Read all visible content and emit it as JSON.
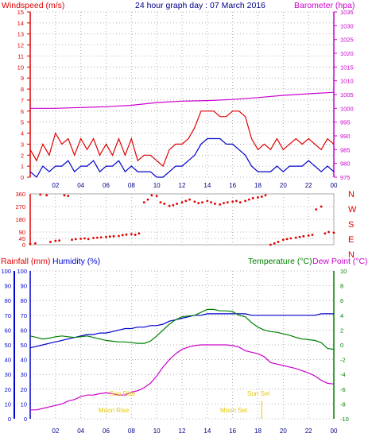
{
  "colors": {
    "wind_axis": "#e00000",
    "baro_axis": "#cc00cc",
    "rain_axis": "#e00000",
    "hum_axis": "#0000cc",
    "temp_axis": "#008000",
    "dew_axis": "#cc00cc",
    "sun": "#e8c800",
    "moon": "#e8c800",
    "grid": "#9a9a9a",
    "dir_axis": "#e00000"
  },
  "header": {
    "windspeed_label": "Windspeed (m/s)",
    "title": "24 hour graph day : 07 March 2016",
    "barometer_label": "Barometer (hpa)"
  },
  "x_ticks": [
    "02",
    "04",
    "06",
    "08",
    "10",
    "12",
    "14",
    "16",
    "18",
    "20",
    "22",
    "00"
  ],
  "bottom_header": {
    "rain": "Rainfall (mm)",
    "humidity": "Humidity (%)",
    "temperature": "Temperature (°C)",
    "dewpoint": "Dew Point (°C)"
  },
  "annotations": {
    "sunrise": "Sun Rise",
    "moonrise": "Moon Rise",
    "sunset": "Sun Set",
    "moonset": "Moon Set"
  },
  "chart_data": [
    {
      "type": "line",
      "title": "24 hour graph day : 07 March 2016",
      "x_unit": "hour",
      "xlim": [
        0,
        24
      ],
      "left_axis": {
        "label": "Windspeed (m/s)",
        "ylim": [
          0,
          15
        ],
        "ticks": [
          0,
          1,
          2,
          3,
          4,
          5,
          6,
          7,
          8,
          9,
          10,
          11,
          12,
          13,
          14,
          15
        ]
      },
      "right_axis": {
        "label": "Barometer (hpa)",
        "ylim": [
          975,
          1035
        ],
        "ticks": [
          975,
          980,
          985,
          990,
          995,
          1000,
          1005,
          1010,
          1015,
          1020,
          1025,
          1030,
          1035
        ]
      },
      "series": [
        {
          "name": "Windspeed (m/s)",
          "axis": "left",
          "color": "#e00000",
          "x": [
            0,
            0.5,
            1,
            1.5,
            2,
            2.5,
            3,
            3.5,
            4,
            4.5,
            5,
            5.5,
            6,
            6.5,
            7,
            7.5,
            8,
            8.5,
            9,
            9.5,
            10,
            10.5,
            11,
            11.5,
            12,
            12.5,
            13,
            13.5,
            14,
            14.5,
            15,
            15.5,
            16,
            16.5,
            17,
            17.5,
            18,
            18.5,
            19,
            19.5,
            20,
            20.5,
            21,
            21.5,
            22,
            22.5,
            23,
            23.5,
            24
          ],
          "y": [
            2.5,
            1.5,
            3,
            2,
            4,
            3,
            3.5,
            2,
            3.5,
            2.5,
            3.5,
            2,
            3,
            2,
            3.5,
            2,
            3.5,
            1.5,
            2,
            2,
            1.5,
            1,
            2.5,
            3,
            3,
            3.5,
            4.5,
            6,
            6,
            6,
            5.5,
            5.5,
            6,
            6,
            5.5,
            3.5,
            2.5,
            3,
            2.5,
            3.5,
            2.5,
            3,
            3.5,
            3,
            3.5,
            3,
            2.5,
            3.5,
            3
          ]
        },
        {
          "name": "Gust",
          "axis": "left",
          "color": "#0000cc",
          "x": [
            0,
            0.5,
            1,
            1.5,
            2,
            2.5,
            3,
            3.5,
            4,
            4.5,
            5,
            5.5,
            6,
            6.5,
            7,
            7.5,
            8,
            8.5,
            9,
            9.5,
            10,
            10.5,
            11,
            11.5,
            12,
            12.5,
            13,
            13.5,
            14,
            14.5,
            15,
            15.5,
            16,
            16.5,
            17,
            17.5,
            18,
            18.5,
            19,
            19.5,
            20,
            20.5,
            21,
            21.5,
            22,
            22.5,
            23,
            23.5,
            24
          ],
          "y": [
            0.5,
            0,
            1,
            0.5,
            1,
            1,
            1.5,
            0.5,
            1,
            1,
            1.5,
            0.5,
            1,
            1,
            1.5,
            0.5,
            1,
            0.5,
            0.5,
            0.5,
            0,
            0,
            0.5,
            1,
            1,
            1.5,
            2,
            3,
            3.5,
            3.5,
            3.5,
            3,
            3,
            2.5,
            2,
            1,
            0.5,
            0.5,
            0.5,
            1,
            0.5,
            1,
            1,
            1,
            1.5,
            1,
            0.5,
            1,
            0.5
          ]
        },
        {
          "name": "Barometer (hpa)",
          "axis": "right",
          "color": "#cc00cc",
          "x": [
            0,
            2,
            4,
            6,
            8,
            10,
            12,
            14,
            16,
            18,
            20,
            22,
            24
          ],
          "y": [
            1000,
            1000,
            1000.3,
            1000.6,
            1001.1,
            1002.1,
            1002.6,
            1002.8,
            1003.2,
            1003.9,
            1004.7,
            1005.3,
            1005.8
          ]
        }
      ]
    },
    {
      "type": "scatter",
      "x_unit": "hour",
      "xlim": [
        0,
        24
      ],
      "ylim": [
        0,
        360
      ],
      "y_ticks": [
        0,
        45,
        90,
        180,
        270,
        360
      ],
      "compass_labels": [
        "N",
        "W",
        "S",
        "E",
        "N"
      ],
      "series": [
        {
          "name": "Wind Direction",
          "color": "#e00000",
          "x": [
            0,
            0.4,
            0.8,
            1.3,
            1.6,
            2,
            2.3,
            2.7,
            3,
            3.3,
            3.6,
            4,
            4.3,
            4.6,
            5,
            5.3,
            5.6,
            6,
            6.3,
            6.6,
            7,
            7.3,
            7.6,
            8,
            8.3,
            8.6,
            9,
            9.3,
            9.6,
            10,
            10.3,
            10.6,
            11,
            11.3,
            11.6,
            12,
            12.3,
            12.6,
            13,
            13.3,
            13.6,
            14,
            14.3,
            14.6,
            15,
            15.3,
            15.6,
            16,
            16.3,
            16.6,
            17,
            17.3,
            17.6,
            18,
            18.3,
            18.6,
            19,
            19.3,
            19.6,
            20,
            20.3,
            20.6,
            21,
            21.3,
            21.6,
            22,
            22.3,
            22.6,
            23,
            23.3,
            23.6,
            24
          ],
          "y": [
            5,
            10,
            355,
            350,
            20,
            28,
            30,
            350,
            345,
            35,
            40,
            42,
            45,
            40,
            48,
            50,
            52,
            55,
            58,
            60,
            62,
            68,
            72,
            75,
            70,
            80,
            300,
            320,
            350,
            345,
            300,
            290,
            275,
            280,
            290,
            300,
            310,
            320,
            305,
            295,
            300,
            310,
            300,
            290,
            285,
            295,
            300,
            305,
            310,
            300,
            310,
            320,
            330,
            335,
            340,
            350,
            0,
            10,
            20,
            35,
            40,
            45,
            50,
            55,
            60,
            65,
            70,
            250,
            270,
            80,
            90,
            85
          ]
        }
      ]
    },
    {
      "type": "line",
      "x_unit": "hour",
      "xlim": [
        0,
        24
      ],
      "left_axes": [
        {
          "label": "Rainfall (mm)",
          "ylim": [
            0,
            100
          ],
          "ticks": [
            0,
            10,
            20,
            30,
            40,
            50,
            60,
            70,
            80,
            90,
            100
          ]
        },
        {
          "label": "Humidity (%)",
          "ylim": [
            0,
            100
          ],
          "ticks": [
            0,
            10,
            20,
            30,
            40,
            50,
            60,
            70,
            80,
            90,
            100
          ]
        }
      ],
      "right_axis": {
        "label": "Temperature (°C)",
        "ylim": [
          -10,
          10
        ],
        "ticks": [
          -10,
          -8,
          -6,
          -4,
          -2,
          0,
          2,
          4,
          6,
          8,
          10
        ]
      },
      "series": [
        {
          "name": "Humidity (%)",
          "axis": "left",
          "color": "#0000cc",
          "x": [
            0,
            0.5,
            1,
            1.5,
            2,
            2.5,
            3,
            3.5,
            4,
            4.5,
            5,
            5.5,
            6,
            6.5,
            7,
            7.5,
            8,
            8.5,
            9,
            9.5,
            10,
            10.5,
            11,
            11.5,
            12,
            12.5,
            13,
            13.5,
            14,
            14.5,
            15,
            15.5,
            16,
            16.5,
            17,
            17.5,
            18,
            18.5,
            19,
            19.5,
            20,
            20.5,
            21,
            21.5,
            22,
            22.5,
            23,
            23.5,
            24
          ],
          "y": [
            48,
            49,
            50,
            51,
            52,
            53,
            54,
            55,
            56,
            57,
            57,
            58,
            58,
            59,
            60,
            61,
            61,
            62,
            62,
            63,
            63,
            64,
            66,
            67,
            68,
            69,
            70,
            70,
            71,
            71,
            71,
            71,
            71,
            71,
            71,
            70,
            70,
            70,
            70,
            70,
            70,
            70,
            70,
            70,
            70,
            70,
            71,
            71,
            71
          ]
        },
        {
          "name": "Temperature (°C)",
          "axis": "right",
          "color": "#008000",
          "x": [
            0,
            0.5,
            1,
            1.5,
            2,
            2.5,
            3,
            3.5,
            4,
            4.5,
            5,
            5.5,
            6,
            6.5,
            7,
            7.5,
            8,
            8.5,
            9,
            9.5,
            10,
            10.5,
            11,
            11.5,
            12,
            12.5,
            13,
            13.5,
            14,
            14.5,
            15,
            15.5,
            16,
            16.5,
            17,
            17.5,
            18,
            18.5,
            19,
            19.5,
            20,
            20.5,
            21,
            21.5,
            22,
            22.5,
            23,
            23.5,
            24
          ],
          "y": [
            1.2,
            1,
            0.8,
            0.9,
            1.1,
            1.2,
            1.1,
            1,
            1.1,
            1.2,
            1,
            0.8,
            0.6,
            0.5,
            0.4,
            0.4,
            0.3,
            0.2,
            0.2,
            0.5,
            1.2,
            2,
            2.8,
            3.4,
            3.8,
            3.9,
            4,
            4.4,
            4.8,
            4.8,
            4.6,
            4.6,
            4.5,
            4,
            3.8,
            3,
            2.4,
            2,
            1.8,
            1.7,
            1.5,
            1.3,
            1,
            0.8,
            0.7,
            0.6,
            0.3,
            -0.5,
            -0.6
          ]
        },
        {
          "name": "Dew Point (°C)",
          "axis": "right",
          "color": "#cc00cc",
          "x": [
            0,
            0.5,
            1,
            1.5,
            2,
            2.5,
            3,
            3.5,
            4,
            4.5,
            5,
            5.5,
            6,
            6.5,
            7,
            7.5,
            8,
            8.5,
            9,
            9.5,
            10,
            10.5,
            11,
            11.5,
            12,
            12.5,
            13,
            13.5,
            14,
            14.5,
            15,
            15.5,
            16,
            16.5,
            17,
            17.5,
            18,
            18.5,
            19,
            19.5,
            20,
            20.5,
            21,
            21.5,
            22,
            22.5,
            23,
            23.5,
            24
          ],
          "y": [
            -8.8,
            -8.8,
            -8.6,
            -8.4,
            -8.2,
            -8,
            -7.6,
            -7.4,
            -7,
            -6.8,
            -6.8,
            -6.6,
            -6.5,
            -6.6,
            -6.8,
            -6.8,
            -6.4,
            -6.2,
            -5.8,
            -5.2,
            -4.2,
            -3,
            -2,
            -1.2,
            -0.6,
            -0.3,
            -0.1,
            0,
            0,
            0,
            0,
            0,
            -0.1,
            -0.3,
            -0.8,
            -1,
            -1.2,
            -1.6,
            -2.4,
            -2.6,
            -2.8,
            -3,
            -3.2,
            -3.5,
            -3.8,
            -4.2,
            -4.8,
            -5.2,
            -5.3
          ]
        }
      ]
    }
  ]
}
